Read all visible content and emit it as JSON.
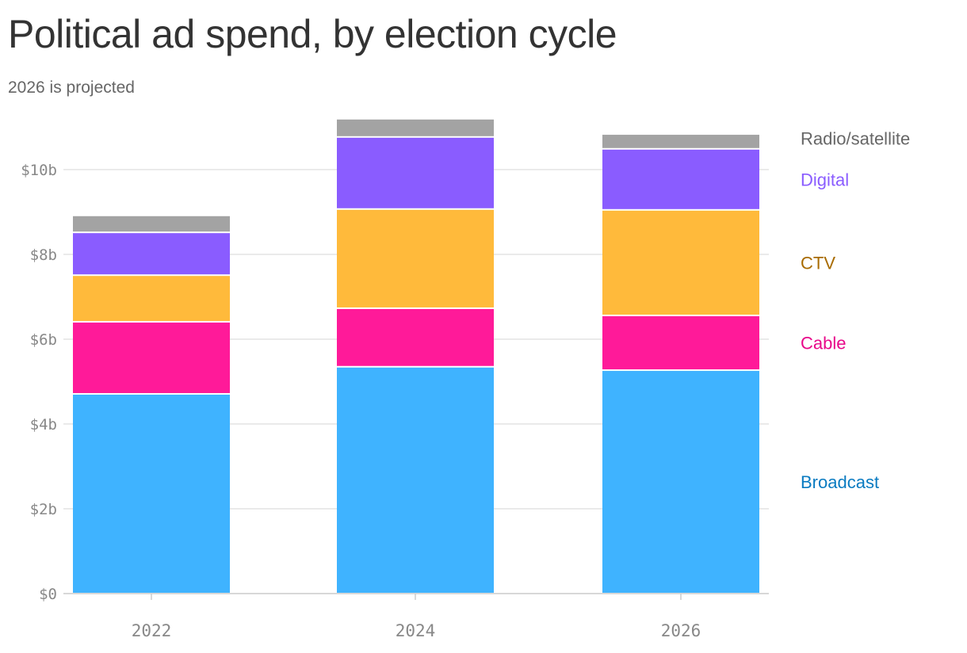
{
  "title": "Political ad spend, by election cycle",
  "subtitle": "2026 is projected",
  "chart_data": {
    "type": "bar",
    "stacked": true,
    "title": "Political ad spend, by election cycle",
    "subtitle": "2026 is projected",
    "categories": [
      "2022",
      "2024",
      "2026"
    ],
    "series": [
      {
        "name": "Broadcast",
        "values": [
          4.71,
          5.35,
          5.27
        ],
        "color": "#3fb3ff",
        "label_color": "#0a7bc1"
      },
      {
        "name": "Cable",
        "values": [
          1.7,
          1.38,
          1.29
        ],
        "color": "#ff1a99",
        "label_color": "#e8088a"
      },
      {
        "name": "CTV",
        "values": [
          1.1,
          2.34,
          2.49
        ],
        "color": "#ffba3b",
        "label_color": "#a86b00"
      },
      {
        "name": "Digital",
        "values": [
          1.01,
          1.7,
          1.44
        ],
        "color": "#8a5cff",
        "label_color": "#8a5cff"
      },
      {
        "name": "Radio/satellite",
        "values": [
          0.4,
          0.43,
          0.35
        ],
        "color": "#a3a3a3",
        "label_color": "#666666"
      }
    ],
    "yticks": [
      0,
      2,
      4,
      6,
      8,
      10
    ],
    "ytick_labels": [
      "$0",
      "$2b",
      "$4b",
      "$6b",
      "$8b",
      "$10b"
    ],
    "ylim": [
      0,
      11.2
    ],
    "grid": true,
    "legend": "right, inline labels",
    "unit": "billions USD"
  }
}
